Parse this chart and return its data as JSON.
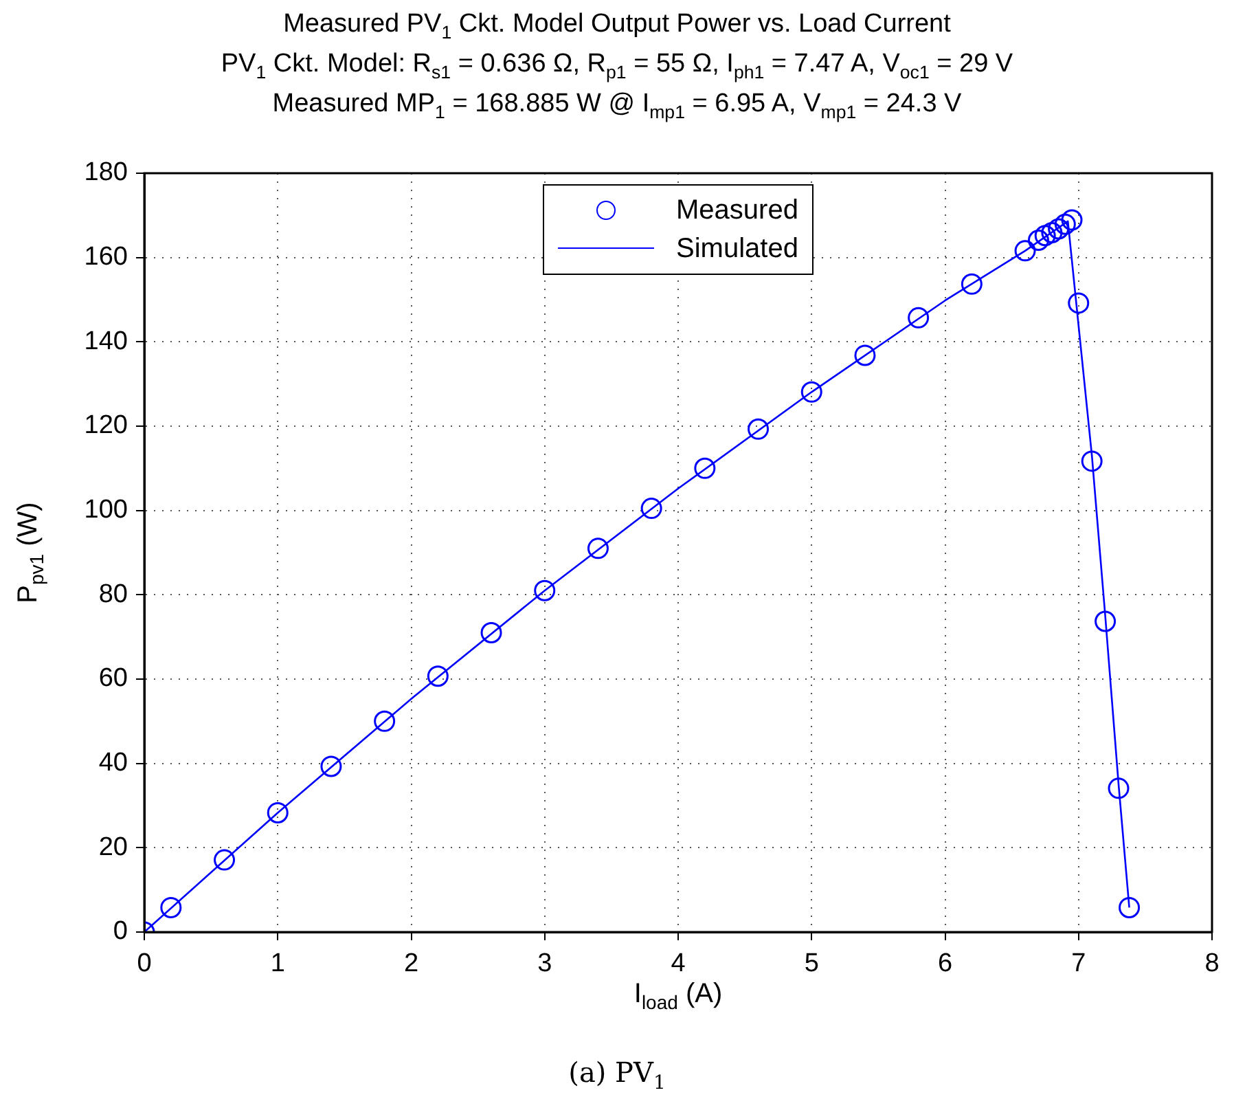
{
  "chart_data": {
    "type": "scatter",
    "title": "Measured PV$_{1}$ Ckt. Model Output Power vs. Load Current",
    "subtitle": "PV$_{1}$ Ckt. Model: R$_{s1}$ = 0.636 Ω, R$_{p1}$ = 55 Ω, I$_{ph1}$ = 7.47 A, V$_{oc1}$ = 29 V\nMeasured MP$_{1}$ = 168.885 W @ I$_{mp1}$ = 6.95 A, V$_{mp1}$ = 24.3 V",
    "xlabel": "I$_{load}$ (A)",
    "ylabel": "P$_{pv1}$ (W)",
    "annotations": [
      "(a) PV$_{1}$"
    ],
    "series": [
      {
        "name": "Measured",
        "type": "scatter",
        "marker": "circle",
        "color": "#0000ff",
        "x": [
          0,
          0.2,
          0.6,
          1.0,
          1.4,
          1.8,
          2.2,
          2.6,
          3.0,
          3.4,
          3.8,
          4.2,
          4.6,
          5.0,
          5.4,
          5.8,
          6.2,
          6.6,
          6.7,
          6.75,
          6.8,
          6.85,
          6.9,
          6.95,
          7.0,
          7.1,
          7.2,
          7.3,
          7.38
        ],
        "values": [
          0,
          5.8,
          17.1,
          28.3,
          39.3,
          50.0,
          60.7,
          71.0,
          81.0,
          91.0,
          100.5,
          110.0,
          119.3,
          128.1,
          136.8,
          145.7,
          153.7,
          161.6,
          164.1,
          165.2,
          165.9,
          166.8,
          167.9,
          168.9,
          149.2,
          111.7,
          73.7,
          34.1,
          5.8
        ]
      },
      {
        "name": "Simulated",
        "type": "line",
        "marker": "none",
        "line_style": "solid",
        "color": "#0000ff",
        "x": [
          0,
          1,
          2,
          3,
          4,
          5,
          6,
          6.6,
          6.92,
          7.1,
          7.2,
          7.3,
          7.38
        ],
        "values": [
          0,
          28.3,
          55.3,
          81.0,
          105.2,
          128.1,
          149.8,
          161.6,
          168.6,
          113,
          75,
          35,
          5.8
        ]
      }
    ],
    "xlim": [
      0,
      8
    ],
    "xticks": [
      0,
      1,
      2,
      3,
      4,
      5,
      6,
      7,
      8
    ],
    "ylim": [
      0,
      180
    ],
    "yticks": [
      0,
      20,
      40,
      60,
      80,
      100,
      120,
      140,
      160,
      180
    ],
    "grid": true,
    "legend": "top"
  }
}
